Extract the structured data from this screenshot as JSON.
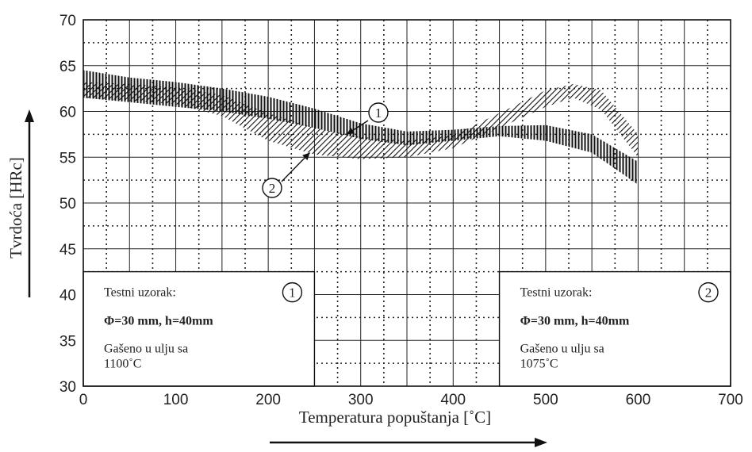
{
  "chart_data": {
    "type": "area",
    "title": "",
    "xlabel": "Temperatura popuštanja [˚C]",
    "ylabel": "Tvrdoća [HRc]",
    "xlim": [
      0,
      700
    ],
    "ylim": [
      30,
      70
    ],
    "x_ticks": [
      "0",
      "100",
      "200",
      "300",
      "400",
      "500",
      "600",
      "700"
    ],
    "y_ticks": [
      "30",
      "35",
      "40",
      "45",
      "50",
      "55",
      "60",
      "65",
      "70"
    ],
    "grid": true,
    "series": [
      {
        "name": "1",
        "hatch": "vertical",
        "x": [
          0,
          50,
          100,
          150,
          200,
          250,
          300,
          350,
          400,
          450,
          500,
          550,
          600
        ],
        "lower": [
          61.5,
          61.0,
          60.5,
          60.0,
          59.2,
          58.2,
          57.0,
          56.3,
          56.8,
          57.3,
          56.8,
          55.5,
          52.0
        ],
        "upper": [
          64.5,
          63.7,
          63.2,
          62.5,
          61.6,
          60.3,
          58.7,
          57.8,
          58.0,
          58.4,
          58.5,
          57.5,
          54.5
        ]
      },
      {
        "name": "2",
        "hatch": "diagonal",
        "x": [
          0,
          50,
          100,
          150,
          200,
          250,
          300,
          350,
          400,
          450,
          500,
          530,
          560,
          600
        ],
        "lower": [
          61.5,
          61.2,
          60.8,
          59.5,
          56.8,
          55.3,
          54.8,
          55.0,
          56.0,
          58.2,
          60.5,
          61.5,
          60.2,
          55.0
        ],
        "upper": [
          63.2,
          63.0,
          62.6,
          61.8,
          59.8,
          58.2,
          57.2,
          56.8,
          57.4,
          59.8,
          62.3,
          63.0,
          62.3,
          57.5
        ]
      }
    ],
    "callouts": [
      {
        "label": "1",
        "arrow_to": [
          285,
          57.5
        ]
      },
      {
        "label": "2",
        "arrow_to": [
          245,
          55.5
        ]
      }
    ],
    "legend_boxes": [
      {
        "marker": "1",
        "title": "Testni uzorak:",
        "dims": "Φ=30 mm, h=40mm",
        "line1": "Gašeno u ulju sa",
        "line2": "1100˚C"
      },
      {
        "marker": "2",
        "title": "Testni uzorak:",
        "dims": "Φ=30 mm, h=40mm",
        "line1": "Gašeno u ulju sa",
        "line2": "1075˚C"
      }
    ]
  }
}
